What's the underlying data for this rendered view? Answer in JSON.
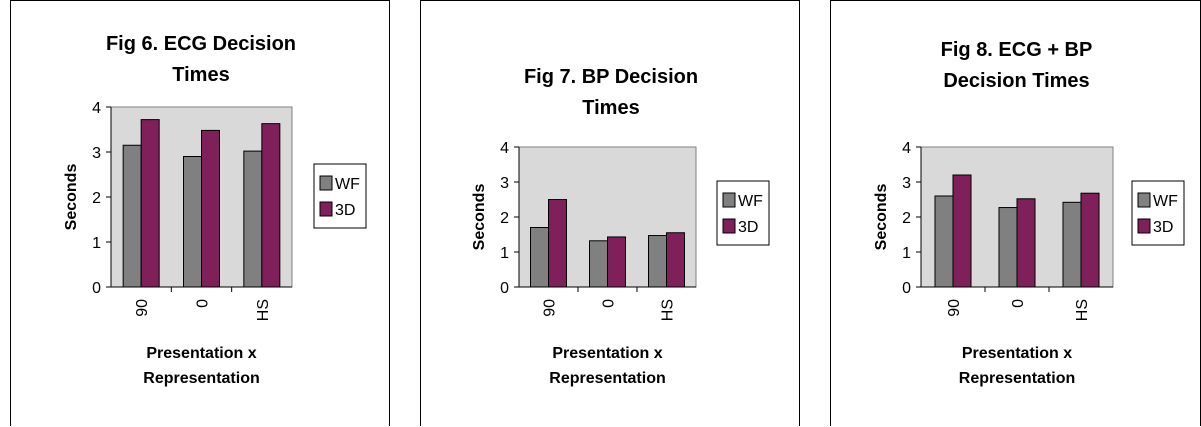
{
  "colors": {
    "WF": "#808080",
    "3D": "#80205a",
    "plot_bg": "#d9d9d9"
  },
  "chart_data": [
    {
      "type": "bar",
      "title_lines": [
        "Fig 6. ECG Decision",
        "Times"
      ],
      "xlabel_lines": [
        "Presentation x",
        "Representation"
      ],
      "ylabel": "Seconds",
      "categories": [
        "90",
        "0",
        "HS"
      ],
      "series": [
        {
          "name": "WF",
          "values": [
            3.15,
            2.9,
            3.02
          ]
        },
        {
          "name": "3D",
          "values": [
            3.72,
            3.48,
            3.63
          ]
        }
      ],
      "ylim": [
        0,
        4
      ],
      "yticks": [
        "0",
        "1",
        "2",
        "3",
        "4"
      ],
      "grid": false,
      "legend": "right"
    },
    {
      "type": "bar",
      "title_lines": [
        "Fig 7. BP Decision",
        "Times"
      ],
      "xlabel_lines": [
        "Presentation x",
        "Representation"
      ],
      "ylabel": "Seconds",
      "categories": [
        "90",
        "0",
        "HS"
      ],
      "series": [
        {
          "name": "WF",
          "values": [
            1.7,
            1.32,
            1.47
          ]
        },
        {
          "name": "3D",
          "values": [
            2.5,
            1.43,
            1.55
          ]
        }
      ],
      "ylim": [
        0,
        4
      ],
      "yticks": [
        "0",
        "1",
        "2",
        "3",
        "4"
      ],
      "grid": false,
      "legend": "right"
    },
    {
      "type": "bar",
      "title_lines": [
        "Fig 8. ECG + BP",
        "Decision Times"
      ],
      "xlabel_lines": [
        "Presentation x",
        "Representation"
      ],
      "ylabel": "Seconds",
      "categories": [
        "90",
        "0",
        "HS"
      ],
      "series": [
        {
          "name": "WF",
          "values": [
            2.6,
            2.27,
            2.42
          ]
        },
        {
          "name": "3D",
          "values": [
            3.2,
            2.52,
            2.68
          ]
        }
      ],
      "ylim": [
        0,
        4
      ],
      "yticks": [
        "0",
        "1",
        "2",
        "3",
        "4"
      ],
      "grid": false,
      "legend": "right"
    }
  ]
}
